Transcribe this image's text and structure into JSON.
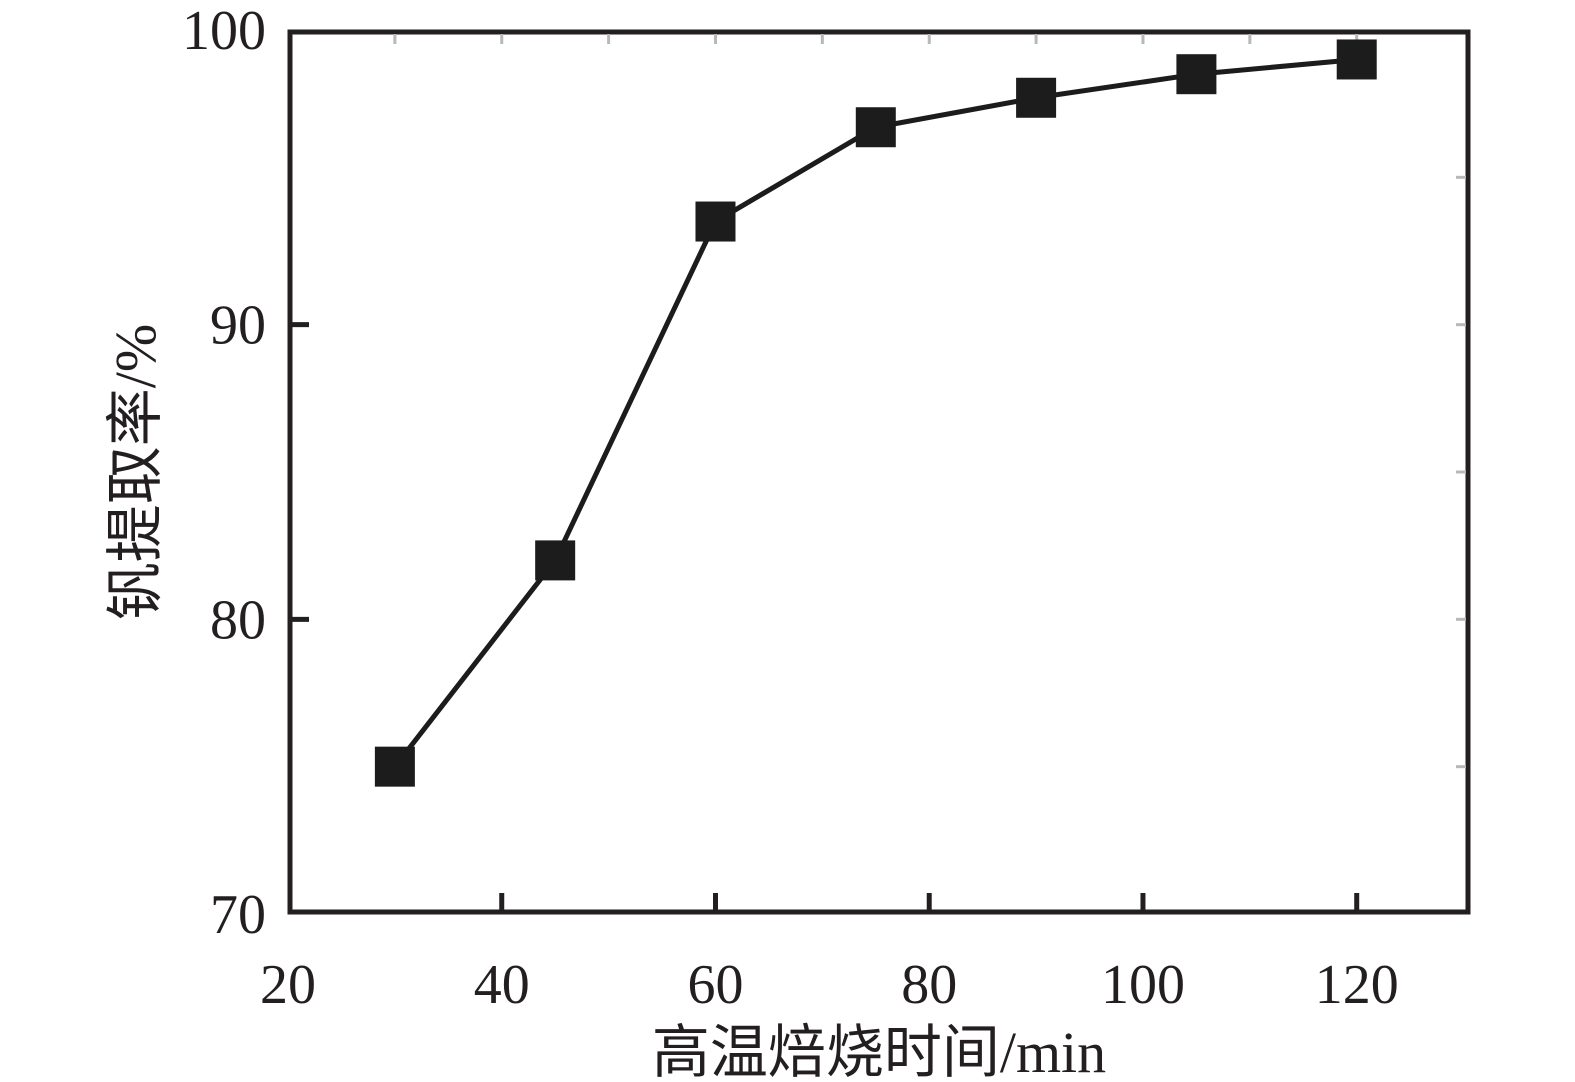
{
  "figure": {
    "background": "#ffffff"
  },
  "chart_data": {
    "type": "line",
    "title": "",
    "xlabel": "高温焙烧时间/min",
    "ylabel": "钒提取率/%",
    "xlim": [
      20,
      130.6
    ],
    "ylim": [
      70,
      100
    ],
    "x_tick_values": [
      20,
      40,
      60,
      80,
      100,
      120
    ],
    "x_tick_labels": [
      "20",
      "40",
      "60",
      "80",
      "100",
      "120"
    ],
    "y_tick_values": [
      70,
      80,
      90,
      100
    ],
    "y_tick_labels": [
      "70",
      "80",
      "90",
      "100"
    ],
    "top_minor_tick_values": [
      30,
      40,
      50,
      60,
      70,
      80,
      90,
      100,
      110,
      120
    ],
    "right_minor_tick_values": [
      75,
      80,
      85,
      90,
      95
    ],
    "grid": false,
    "legend": "none",
    "series": [
      {
        "marker": "square",
        "color": "#1c1c1c",
        "x": [
          30,
          45,
          60,
          75,
          90,
          105,
          120
        ],
        "y": [
          75,
          82,
          93.5,
          96.7,
          97.7,
          98.5,
          99
        ]
      }
    ],
    "style": {
      "axis_color": "#231f20",
      "minor_tick_color": "#b8b8b8",
      "text_color": "#231f20"
    }
  }
}
